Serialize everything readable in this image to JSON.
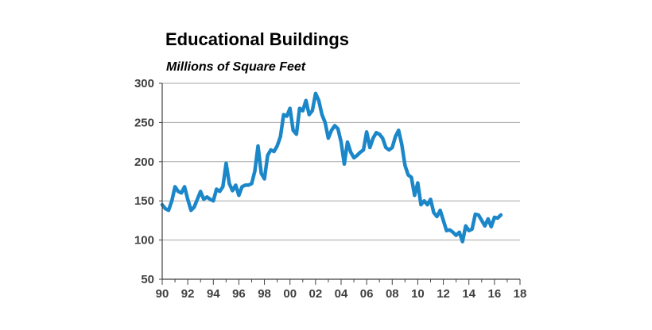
{
  "chart_data": {
    "type": "line",
    "title": "Educational Buildings",
    "subtitle": "Millions of Square Feet",
    "xlabel": "",
    "ylabel": "",
    "xlim": [
      1990,
      2018
    ],
    "ylim": [
      50,
      300
    ],
    "grid": true,
    "line_color": "#1b87c9",
    "grid_color": "#a6a6a6",
    "axis_color": "#404040",
    "x_ticks": [
      {
        "value": 1990,
        "label": "90"
      },
      {
        "value": 1992,
        "label": "92"
      },
      {
        "value": 1994,
        "label": "94"
      },
      {
        "value": 1996,
        "label": "96"
      },
      {
        "value": 1998,
        "label": "98"
      },
      {
        "value": 2000,
        "label": "00"
      },
      {
        "value": 2002,
        "label": "02"
      },
      {
        "value": 2004,
        "label": "04"
      },
      {
        "value": 2006,
        "label": "06"
      },
      {
        "value": 2008,
        "label": "08"
      },
      {
        "value": 2010,
        "label": "10"
      },
      {
        "value": 2012,
        "label": "12"
      },
      {
        "value": 2014,
        "label": "14"
      },
      {
        "value": 2016,
        "label": "16"
      },
      {
        "value": 2018,
        "label": "18"
      }
    ],
    "y_ticks": [
      {
        "value": 50,
        "label": "50"
      },
      {
        "value": 100,
        "label": "100"
      },
      {
        "value": 150,
        "label": "150"
      },
      {
        "value": 200,
        "label": "200"
      },
      {
        "value": 250,
        "label": "250"
      },
      {
        "value": 300,
        "label": "300"
      }
    ],
    "series": [
      {
        "name": "Educational Buildings",
        "x": [
          1990.0,
          1990.25,
          1990.5,
          1990.75,
          1991.0,
          1991.25,
          1991.5,
          1991.75,
          1992.0,
          1992.25,
          1992.5,
          1992.75,
          1993.0,
          1993.25,
          1993.5,
          1993.75,
          1994.0,
          1994.25,
          1994.5,
          1994.75,
          1995.0,
          1995.25,
          1995.5,
          1995.75,
          1996.0,
          1996.25,
          1996.5,
          1996.75,
          1997.0,
          1997.25,
          1997.5,
          1997.75,
          1998.0,
          1998.25,
          1998.5,
          1998.75,
          1999.0,
          1999.25,
          1999.5,
          1999.75,
          2000.0,
          2000.25,
          2000.5,
          2000.75,
          2001.0,
          2001.25,
          2001.5,
          2001.75,
          2002.0,
          2002.25,
          2002.5,
          2002.75,
          2003.0,
          2003.25,
          2003.5,
          2003.75,
          2004.0,
          2004.25,
          2004.5,
          2004.75,
          2005.0,
          2005.25,
          2005.5,
          2005.75,
          2006.0,
          2006.25,
          2006.5,
          2006.75,
          2007.0,
          2007.25,
          2007.5,
          2007.75,
          2008.0,
          2008.25,
          2008.5,
          2008.75,
          2009.0,
          2009.25,
          2009.5,
          2009.75,
          2010.0,
          2010.25,
          2010.5,
          2010.75,
          2011.0,
          2011.25,
          2011.5,
          2011.75,
          2012.0,
          2012.25,
          2012.5,
          2012.75,
          2013.0,
          2013.25,
          2013.5,
          2013.75,
          2014.0,
          2014.25,
          2014.5,
          2014.75,
          2015.0,
          2015.25,
          2015.5,
          2015.75,
          2016.0,
          2016.25,
          2016.5
        ],
        "values": [
          145,
          140,
          138,
          150,
          168,
          162,
          160,
          168,
          152,
          138,
          142,
          152,
          162,
          152,
          155,
          152,
          150,
          165,
          162,
          168,
          198,
          172,
          163,
          170,
          157,
          168,
          170,
          170,
          172,
          188,
          220,
          185,
          178,
          208,
          215,
          213,
          220,
          232,
          260,
          258,
          268,
          240,
          235,
          268,
          265,
          278,
          260,
          265,
          287,
          278,
          260,
          250,
          230,
          240,
          246,
          242,
          225,
          197,
          225,
          212,
          205,
          208,
          212,
          215,
          238,
          218,
          230,
          237,
          235,
          230,
          218,
          215,
          218,
          232,
          240,
          222,
          195,
          183,
          180,
          157,
          173,
          145,
          150,
          145,
          152,
          135,
          130,
          138,
          125,
          112,
          113,
          110,
          106,
          110,
          98,
          118,
          112,
          114,
          133,
          132,
          125,
          118,
          127,
          117,
          129,
          128,
          132
        ]
      }
    ]
  }
}
